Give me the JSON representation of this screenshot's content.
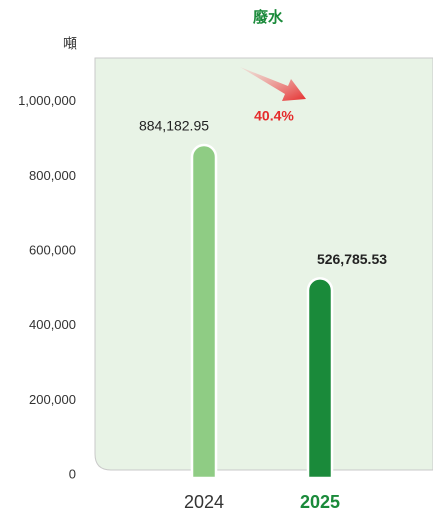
{
  "chart_data": {
    "type": "bar",
    "title": "廢水",
    "y_label": "噸",
    "categories": [
      "2024",
      "2025"
    ],
    "values": [
      884182.95,
      526785.53
    ],
    "value_labels": [
      "884,182.95",
      "526,785.53"
    ],
    "colors": [
      "#8fcc84",
      "#1a8a3a"
    ],
    "annotation": "40.4%",
    "ylim": [
      0,
      1120000
    ],
    "yticks": [
      0,
      {
        "value": 200000,
        "label": "200,000"
      },
      {
        "value": 400000,
        "label": "400,000"
      },
      {
        "value": 600000,
        "label": "600,000"
      },
      {
        "value": 800000,
        "label": "800,000"
      },
      {
        "value": 1000000,
        "label": "1,000,000"
      }
    ],
    "grid": false
  }
}
